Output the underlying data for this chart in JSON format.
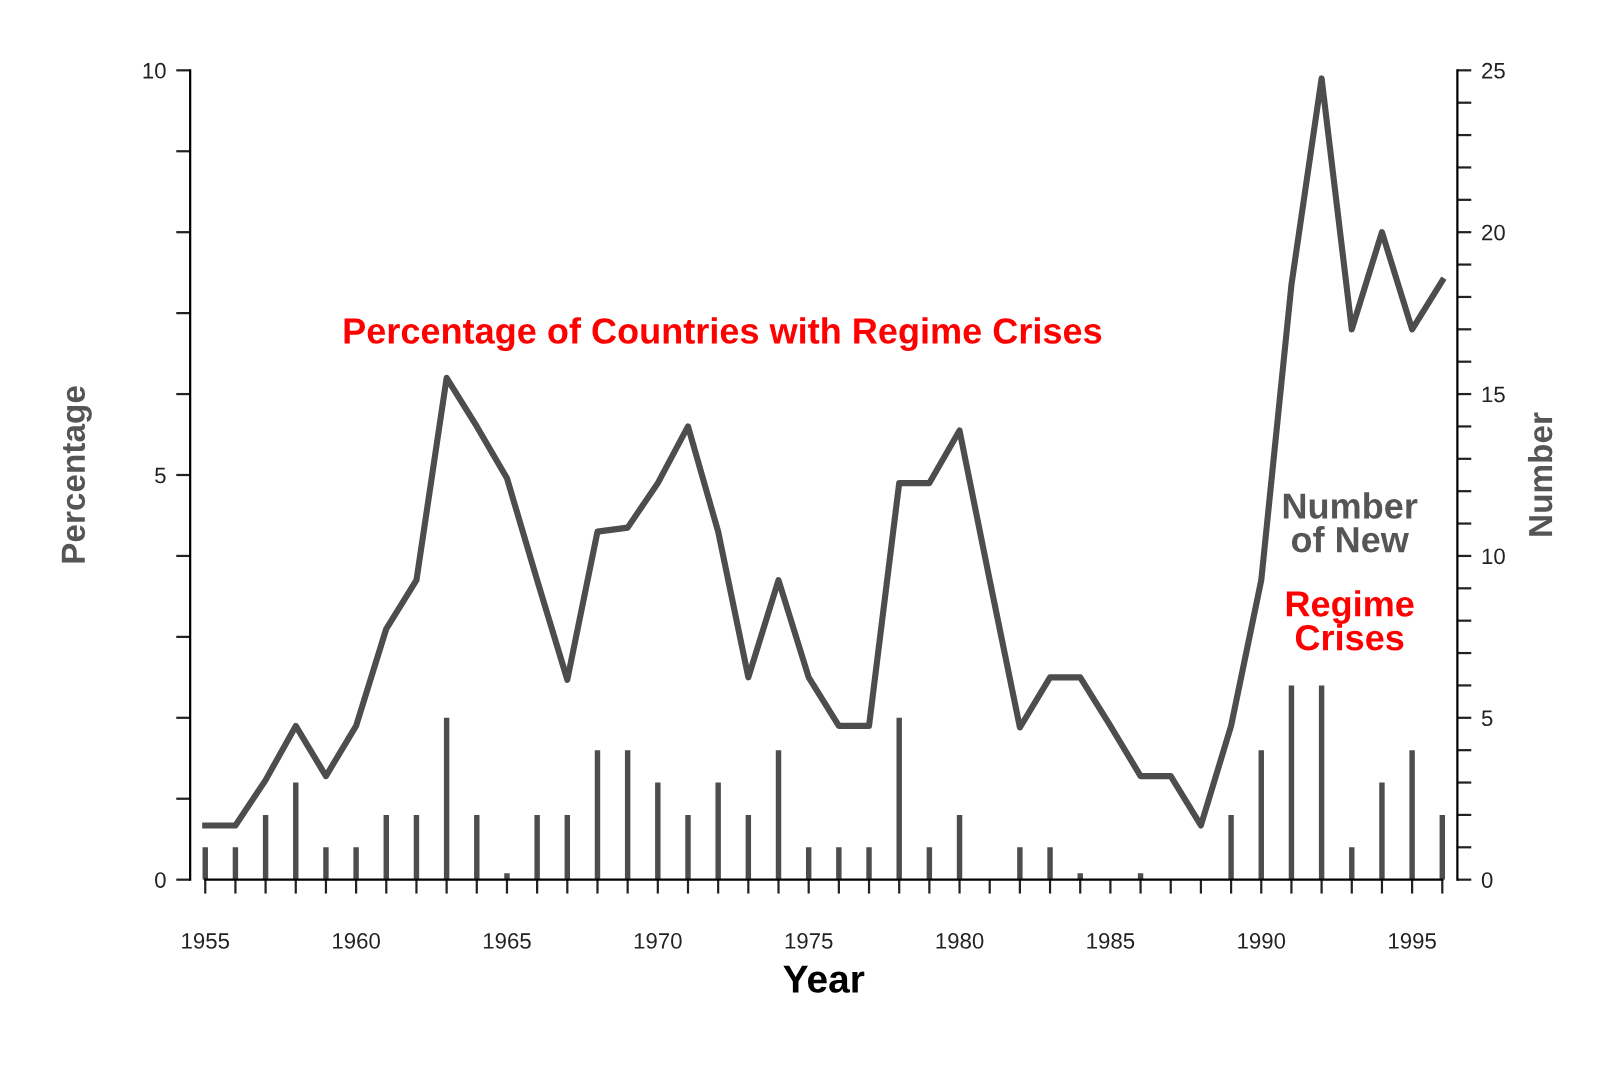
{
  "chart_data": {
    "type": "line",
    "xlabel": "Year",
    "ylabel": "Percentage",
    "y2label": "Number",
    "x": [
      1955,
      1956,
      1957,
      1958,
      1959,
      1960,
      1961,
      1962,
      1963,
      1964,
      1965,
      1966,
      1967,
      1968,
      1969,
      1970,
      1971,
      1972,
      1973,
      1974,
      1975,
      1976,
      1977,
      1978,
      1979,
      1980,
      1981,
      1982,
      1983,
      1984,
      1985,
      1986,
      1987,
      1988,
      1989,
      1990,
      1991,
      1992,
      1993,
      1994,
      1995,
      1996
    ],
    "series": [
      {
        "color": "#4d4d4d",
        "values": [
          0.67,
          0.67,
          1.23,
          1.9,
          1.28,
          1.9,
          3.1,
          3.7,
          6.2,
          5.6,
          4.96,
          3.7,
          2.47,
          4.3,
          4.35,
          4.9,
          5.6,
          4.3,
          2.5,
          3.7,
          2.5,
          1.9,
          1.9,
          4.9,
          4.9,
          5.55,
          3.7,
          1.88,
          2.5,
          2.5,
          1.9,
          1.28,
          1.28,
          0.67,
          1.9,
          3.7,
          7.35,
          9.9,
          6.8,
          8.0,
          6.8,
          7.4
        ]
      },
      {
        "type": "bar",
        "axis": "y2",
        "color": "#4d4d4d",
        "values": [
          1,
          1,
          2,
          3,
          1,
          1,
          2,
          2,
          5,
          2,
          0.2,
          2,
          2,
          4,
          4,
          3,
          2,
          3,
          2,
          4,
          1,
          1,
          1,
          5,
          1,
          2,
          0,
          1,
          1,
          0.2,
          0,
          0.2,
          0,
          0,
          2,
          4,
          6,
          6,
          1,
          3,
          4,
          2
        ]
      }
    ],
    "xlim": [
      1954.5,
      1996.5
    ],
    "xticks": [
      1955,
      {
        "value": 1956,
        "label": null
      },
      {
        "value": 1957,
        "label": null
      },
      {
        "value": 1958,
        "label": null
      },
      {
        "value": 1959,
        "label": null
      },
      1960,
      {
        "value": 1961,
        "label": null
      },
      {
        "value": 1962,
        "label": null
      },
      {
        "value": 1963,
        "label": null
      },
      {
        "value": 1964,
        "label": null
      },
      1965,
      {
        "value": 1966,
        "label": null
      },
      {
        "value": 1967,
        "label": null
      },
      {
        "value": 1968,
        "label": null
      },
      {
        "value": 1969,
        "label": null
      },
      1970,
      {
        "value": 1971,
        "label": null
      },
      {
        "value": 1972,
        "label": null
      },
      {
        "value": 1973,
        "label": null
      },
      {
        "value": 1974,
        "label": null
      },
      1975,
      {
        "value": 1976,
        "label": null
      },
      {
        "value": 1977,
        "label": null
      },
      {
        "value": 1978,
        "label": null
      },
      {
        "value": 1979,
        "label": null
      },
      1980,
      {
        "value": 1981,
        "label": null
      },
      {
        "value": 1982,
        "label": null
      },
      {
        "value": 1983,
        "label": null
      },
      {
        "value": 1984,
        "label": null
      },
      1985,
      {
        "value": 1986,
        "label": null
      },
      {
        "value": 1987,
        "label": null
      },
      {
        "value": 1988,
        "label": null
      },
      {
        "value": 1989,
        "label": null
      },
      1990,
      {
        "value": 1991,
        "label": null
      },
      {
        "value": 1992,
        "label": null
      },
      {
        "value": 1993,
        "label": null
      },
      {
        "value": 1994,
        "label": null
      },
      1995,
      {
        "value": 1996,
        "label": null
      }
    ],
    "ylim": [
      0,
      10
    ],
    "yticks": [
      0,
      {
        "value": 1,
        "label": null
      },
      {
        "value": 2,
        "label": null
      },
      {
        "value": 3,
        "label": null
      },
      {
        "value": 4,
        "label": null
      },
      5,
      {
        "value": 6,
        "label": null
      },
      {
        "value": 7,
        "label": null
      },
      {
        "value": 8,
        "label": null
      },
      {
        "value": 9,
        "label": null
      },
      10
    ],
    "y2lim": [
      0,
      25
    ],
    "y2ticks": [
      0,
      {
        "value": 1,
        "label": null
      },
      {
        "value": 2,
        "label": null
      },
      {
        "value": 3,
        "label": null
      },
      {
        "value": 4,
        "label": null
      },
      5,
      {
        "value": 6,
        "label": null
      },
      {
        "value": 7,
        "label": null
      },
      {
        "value": 8,
        "label": null
      },
      {
        "value": 9,
        "label": null
      },
      10,
      {
        "value": 11,
        "label": null
      },
      {
        "value": 12,
        "label": null
      },
      {
        "value": 13,
        "label": null
      },
      {
        "value": 14,
        "label": null
      },
      15,
      {
        "value": 16,
        "label": null
      },
      {
        "value": 17,
        "label": null
      },
      {
        "value": 18,
        "label": null
      },
      {
        "value": 19,
        "label": null
      },
      20,
      {
        "value": 21,
        "label": null
      },
      {
        "value": 22,
        "label": null
      },
      {
        "value": 23,
        "label": null
      },
      {
        "value": 24,
        "label": null
      },
      25
    ],
    "annotations": [
      "Percentage of Countries with Regime Crises",
      "Number of New",
      "Regime Crises"
    ],
    "grid": false,
    "legend": false
  }
}
